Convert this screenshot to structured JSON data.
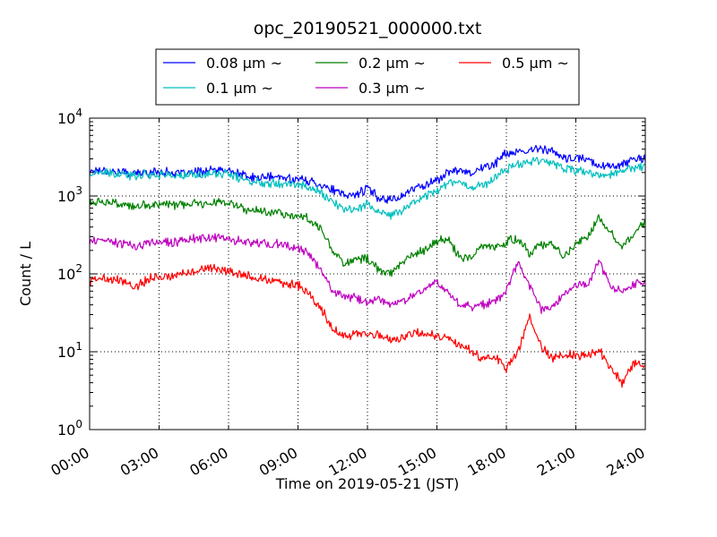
{
  "chart_data": {
    "type": "line",
    "title": "opc_20190521_000000.txt",
    "xlabel": "Time on 2019-05-21 (JST)",
    "ylabel": "Count / L",
    "yscale": "log",
    "ylim": [
      1,
      10000
    ],
    "xlim": [
      0,
      24
    ],
    "x_tick_labels": [
      "00:00",
      "03:00",
      "06:00",
      "09:00",
      "12:00",
      "15:00",
      "18:00",
      "21:00",
      "24:00"
    ],
    "y_tick_labels": [
      {
        "base": "10",
        "exp": "0"
      },
      {
        "base": "10",
        "exp": "1"
      },
      {
        "base": "10",
        "exp": "2"
      },
      {
        "base": "10",
        "exp": "3"
      },
      {
        "base": "10",
        "exp": "4"
      }
    ],
    "grid": true,
    "legend_position": "top-center",
    "x_hours": [
      0,
      0.5,
      1,
      1.5,
      2,
      2.5,
      3,
      3.5,
      4,
      4.5,
      5,
      5.5,
      6,
      6.5,
      7,
      7.5,
      8,
      8.5,
      9,
      9.5,
      10,
      10.5,
      11,
      11.5,
      12,
      12.5,
      13,
      13.5,
      14,
      14.5,
      15,
      15.5,
      16,
      16.5,
      17,
      17.5,
      18,
      18.5,
      19,
      19.5,
      20,
      20.5,
      21,
      21.5,
      22,
      22.5,
      23,
      23.5,
      24
    ],
    "series": [
      {
        "name": "0.08 μm ~",
        "color": "#0000ff",
        "values": [
          2100,
          2200,
          2050,
          2000,
          1950,
          2000,
          2050,
          2000,
          1900,
          2000,
          2100,
          2150,
          2100,
          1900,
          1700,
          1750,
          1750,
          1700,
          1650,
          1550,
          1400,
          1200,
          1000,
          1050,
          1250,
          950,
          900,
          1000,
          1250,
          1400,
          1600,
          2000,
          2200,
          2000,
          2300,
          2600,
          3600,
          3500,
          3800,
          4200,
          3700,
          3000,
          3000,
          3000,
          2500,
          2400,
          2600,
          2900,
          3000
        ]
      },
      {
        "name": "0.1 μm ~",
        "color": "#00bfbf",
        "values": [
          1900,
          2000,
          1900,
          1850,
          1850,
          1900,
          1900,
          1850,
          1800,
          1850,
          1900,
          1950,
          1900,
          1700,
          1500,
          1500,
          1500,
          1450,
          1400,
          1300,
          1100,
          850,
          650,
          700,
          800,
          600,
          560,
          650,
          850,
          1000,
          1200,
          1500,
          1500,
          1300,
          1400,
          1700,
          2200,
          2600,
          2800,
          3000,
          2600,
          2300,
          2100,
          2000,
          1800,
          1900,
          2100,
          2300,
          2400
        ]
      },
      {
        "name": "0.2 μm ~",
        "color": "#008000",
        "values": [
          800,
          850,
          820,
          750,
          720,
          760,
          800,
          780,
          750,
          790,
          820,
          850,
          820,
          700,
          640,
          650,
          620,
          590,
          560,
          500,
          380,
          200,
          140,
          150,
          160,
          110,
          100,
          140,
          180,
          200,
          260,
          280,
          160,
          160,
          240,
          210,
          260,
          290,
          180,
          240,
          240,
          170,
          250,
          280,
          550,
          340,
          240,
          310,
          480
        ]
      },
      {
        "name": "0.3 μm ~",
        "color": "#bf00bf",
        "values": [
          250,
          270,
          260,
          240,
          220,
          250,
          260,
          250,
          270,
          280,
          290,
          295,
          280,
          260,
          250,
          250,
          240,
          230,
          210,
          180,
          110,
          60,
          50,
          50,
          42,
          48,
          40,
          45,
          55,
          65,
          80,
          55,
          40,
          38,
          40,
          45,
          60,
          140,
          70,
          35,
          38,
          55,
          70,
          70,
          150,
          70,
          60,
          70,
          85
        ]
      },
      {
        "name": "0.5 μm ~",
        "color": "#ff0000",
        "values": [
          80,
          90,
          85,
          80,
          70,
          85,
          95,
          90,
          100,
          110,
          115,
          120,
          110,
          100,
          90,
          85,
          80,
          75,
          70,
          55,
          35,
          20,
          16,
          16,
          17,
          16,
          14,
          15,
          18,
          17,
          16,
          15,
          12,
          10,
          8,
          9,
          6,
          10,
          28,
          12,
          8,
          9,
          9,
          9,
          11,
          6,
          4,
          7,
          7
        ]
      }
    ]
  }
}
